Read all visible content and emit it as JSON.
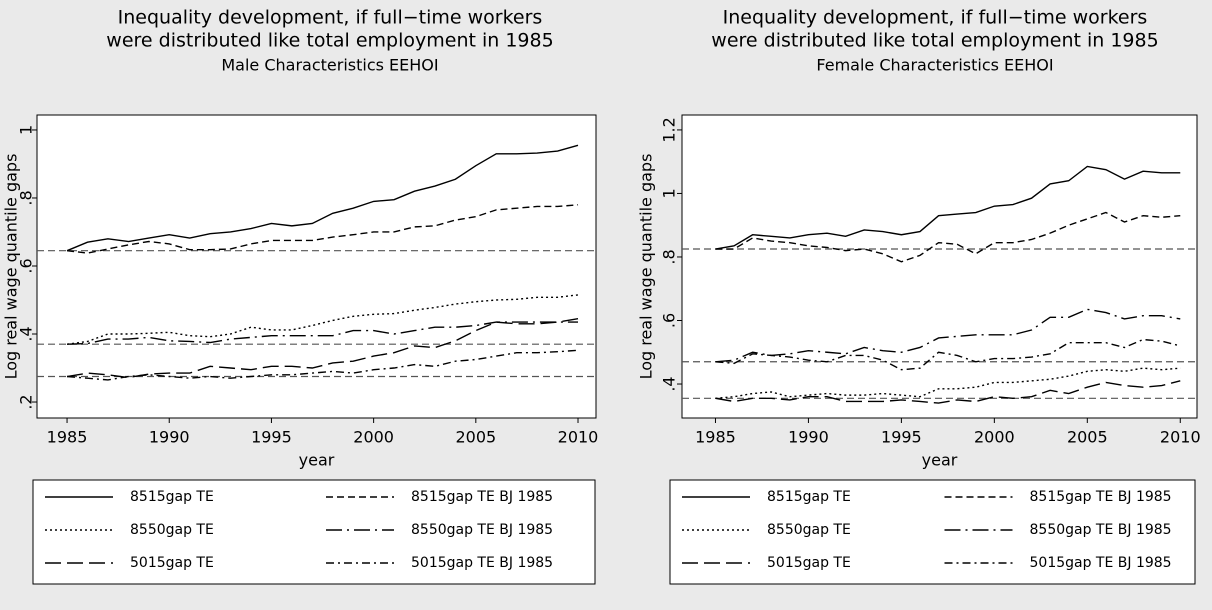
{
  "chart_data": [
    {
      "type": "line",
      "title": [
        "Inequality development, if full−time workers",
        "were distributed like total employment in 1985"
      ],
      "subtitle": "Male Characteristics EEHOI",
      "y_label": "Log real wage quantile gaps",
      "x_label": "year",
      "x": [
        1985,
        1986,
        1987,
        1988,
        1989,
        1990,
        1991,
        1992,
        1993,
        1994,
        1995,
        1996,
        1997,
        1998,
        1999,
        2000,
        2001,
        2002,
        2003,
        2004,
        2005,
        2006,
        2007,
        2008,
        2009,
        2010
      ],
      "xlim": [
        1983.53,
        2010.88
      ],
      "xticks": [
        1985,
        1990,
        1995,
        2000,
        2005,
        2010
      ],
      "ylim": [
        0.153,
        1.044
      ],
      "yticks": [
        {
          "value": 0.2,
          "label": ".2"
        },
        {
          "value": 0.4,
          "label": ".4"
        },
        {
          "value": 0.6,
          "label": ".6"
        },
        {
          "value": 0.8,
          "label": ".8"
        },
        1
      ],
      "hlines": [
        0.645,
        0.37,
        0.275
      ],
      "hline_color": "#555555",
      "series": [
        {
          "name": "8515gap TE",
          "color": "#000000",
          "style": "solid",
          "values": [
            0.645,
            0.67,
            0.68,
            0.672,
            0.682,
            0.692,
            0.682,
            0.695,
            0.7,
            0.71,
            0.725,
            0.718,
            0.725,
            0.755,
            0.77,
            0.79,
            0.795,
            0.82,
            0.835,
            0.855,
            0.895,
            0.93,
            0.93,
            0.932,
            0.938,
            0.955
          ]
        },
        {
          "name": "8515gap TE BJ 1985",
          "color": "#000000",
          "style": "dashed",
          "values": [
            0.645,
            0.638,
            0.65,
            0.662,
            0.672,
            0.665,
            0.648,
            0.648,
            0.65,
            0.665,
            0.675,
            0.675,
            0.675,
            0.685,
            0.692,
            0.7,
            0.7,
            0.715,
            0.718,
            0.735,
            0.745,
            0.765,
            0.77,
            0.775,
            0.775,
            0.78
          ]
        },
        {
          "name": "8550gap TE",
          "color": "#000000",
          "style": "dotted",
          "values": [
            0.37,
            0.378,
            0.4,
            0.4,
            0.402,
            0.405,
            0.395,
            0.392,
            0.4,
            0.42,
            0.412,
            0.412,
            0.425,
            0.44,
            0.452,
            0.458,
            0.46,
            0.47,
            0.478,
            0.488,
            0.495,
            0.5,
            0.502,
            0.508,
            0.508,
            0.515
          ]
        },
        {
          "name": "8550gap TE BJ 1985",
          "color": "#000000",
          "style": "longdashdot",
          "values": [
            0.37,
            0.372,
            0.385,
            0.385,
            0.39,
            0.38,
            0.378,
            0.375,
            0.385,
            0.39,
            0.395,
            0.395,
            0.395,
            0.395,
            0.41,
            0.41,
            0.4,
            0.41,
            0.42,
            0.42,
            0.425,
            0.435,
            0.435,
            0.435,
            0.435,
            0.435
          ]
        },
        {
          "name": "5015gap TE",
          "color": "#000000",
          "style": "longdash",
          "values": [
            0.275,
            0.285,
            0.28,
            0.272,
            0.282,
            0.285,
            0.285,
            0.305,
            0.3,
            0.295,
            0.305,
            0.305,
            0.3,
            0.315,
            0.32,
            0.335,
            0.345,
            0.365,
            0.36,
            0.38,
            0.41,
            0.435,
            0.43,
            0.43,
            0.435,
            0.445
          ]
        },
        {
          "name": "5015gap TE BJ 1985",
          "color": "#000000",
          "style": "dashdot",
          "values": [
            0.275,
            0.27,
            0.265,
            0.275,
            0.28,
            0.275,
            0.27,
            0.275,
            0.27,
            0.275,
            0.28,
            0.28,
            0.285,
            0.29,
            0.285,
            0.295,
            0.3,
            0.31,
            0.305,
            0.32,
            0.325,
            0.335,
            0.345,
            0.345,
            0.348,
            0.352
          ]
        }
      ]
    },
    {
      "type": "line",
      "title": [
        "Inequality development, if full−time workers",
        "were distributed like total employment in 1985"
      ],
      "subtitle": "Female Characteristics EEHOI",
      "y_label": "Log real wage quantile gaps",
      "x_label": "year",
      "x": [
        1985,
        1986,
        1987,
        1988,
        1989,
        1990,
        1991,
        1992,
        1993,
        1994,
        1995,
        1996,
        1997,
        1998,
        1999,
        2000,
        2001,
        2002,
        2003,
        2004,
        2005,
        2006,
        2007,
        2008,
        2009,
        2010
      ],
      "xlim": [
        1983.2,
        2010.9
      ],
      "xticks": [
        1985,
        1990,
        1995,
        2000,
        2005,
        2010
      ],
      "ylim": [
        0.293,
        1.247
      ],
      "yticks": [
        {
          "value": 0.4,
          "label": ".4"
        },
        {
          "value": 0.6,
          "label": ".6"
        },
        {
          "value": 0.8,
          "label": ".8"
        },
        1,
        1.2
      ],
      "hlines": [
        0.825,
        0.47,
        0.355
      ],
      "hline_color": "#555555",
      "series": [
        {
          "name": "8515gap TE",
          "color": "#000000",
          "style": "solid",
          "values": [
            0.825,
            0.835,
            0.87,
            0.865,
            0.86,
            0.87,
            0.875,
            0.865,
            0.885,
            0.88,
            0.87,
            0.88,
            0.93,
            0.935,
            0.94,
            0.96,
            0.965,
            0.985,
            1.03,
            1.04,
            1.085,
            1.075,
            1.045,
            1.07,
            1.065,
            1.065
          ]
        },
        {
          "name": "8515gap TE BJ 1985",
          "color": "#000000",
          "style": "dashed",
          "values": [
            0.825,
            0.825,
            0.86,
            0.85,
            0.845,
            0.835,
            0.83,
            0.82,
            0.825,
            0.81,
            0.785,
            0.805,
            0.845,
            0.84,
            0.81,
            0.845,
            0.845,
            0.855,
            0.875,
            0.9,
            0.92,
            0.94,
            0.91,
            0.93,
            0.925,
            0.93
          ]
        },
        {
          "name": "8550gap TE",
          "color": "#000000",
          "style": "dotted",
          "values": [
            0.355,
            0.36,
            0.37,
            0.375,
            0.36,
            0.365,
            0.37,
            0.365,
            0.365,
            0.37,
            0.365,
            0.36,
            0.385,
            0.385,
            0.39,
            0.405,
            0.405,
            0.41,
            0.415,
            0.425,
            0.44,
            0.445,
            0.44,
            0.45,
            0.445,
            0.45
          ]
        },
        {
          "name": "8550gap TE BJ 1985",
          "color": "#000000",
          "style": "longdashdot",
          "values": [
            0.47,
            0.475,
            0.5,
            0.49,
            0.495,
            0.505,
            0.5,
            0.495,
            0.515,
            0.505,
            0.5,
            0.515,
            0.545,
            0.55,
            0.555,
            0.555,
            0.555,
            0.57,
            0.61,
            0.61,
            0.635,
            0.625,
            0.605,
            0.615,
            0.615,
            0.605
          ]
        },
        {
          "name": "5015gap TE",
          "color": "#000000",
          "style": "longdash",
          "values": [
            0.355,
            0.345,
            0.355,
            0.355,
            0.35,
            0.36,
            0.36,
            0.345,
            0.345,
            0.345,
            0.35,
            0.345,
            0.34,
            0.35,
            0.345,
            0.36,
            0.355,
            0.36,
            0.38,
            0.37,
            0.39,
            0.405,
            0.395,
            0.39,
            0.395,
            0.41
          ]
        },
        {
          "name": "5015gap TE BJ 1985",
          "color": "#000000",
          "style": "dashdot",
          "values": [
            0.47,
            0.465,
            0.495,
            0.49,
            0.485,
            0.475,
            0.47,
            0.49,
            0.49,
            0.475,
            0.445,
            0.45,
            0.5,
            0.49,
            0.47,
            0.48,
            0.48,
            0.485,
            0.495,
            0.53,
            0.53,
            0.53,
            0.515,
            0.54,
            0.535,
            0.52
          ]
        }
      ]
    }
  ]
}
